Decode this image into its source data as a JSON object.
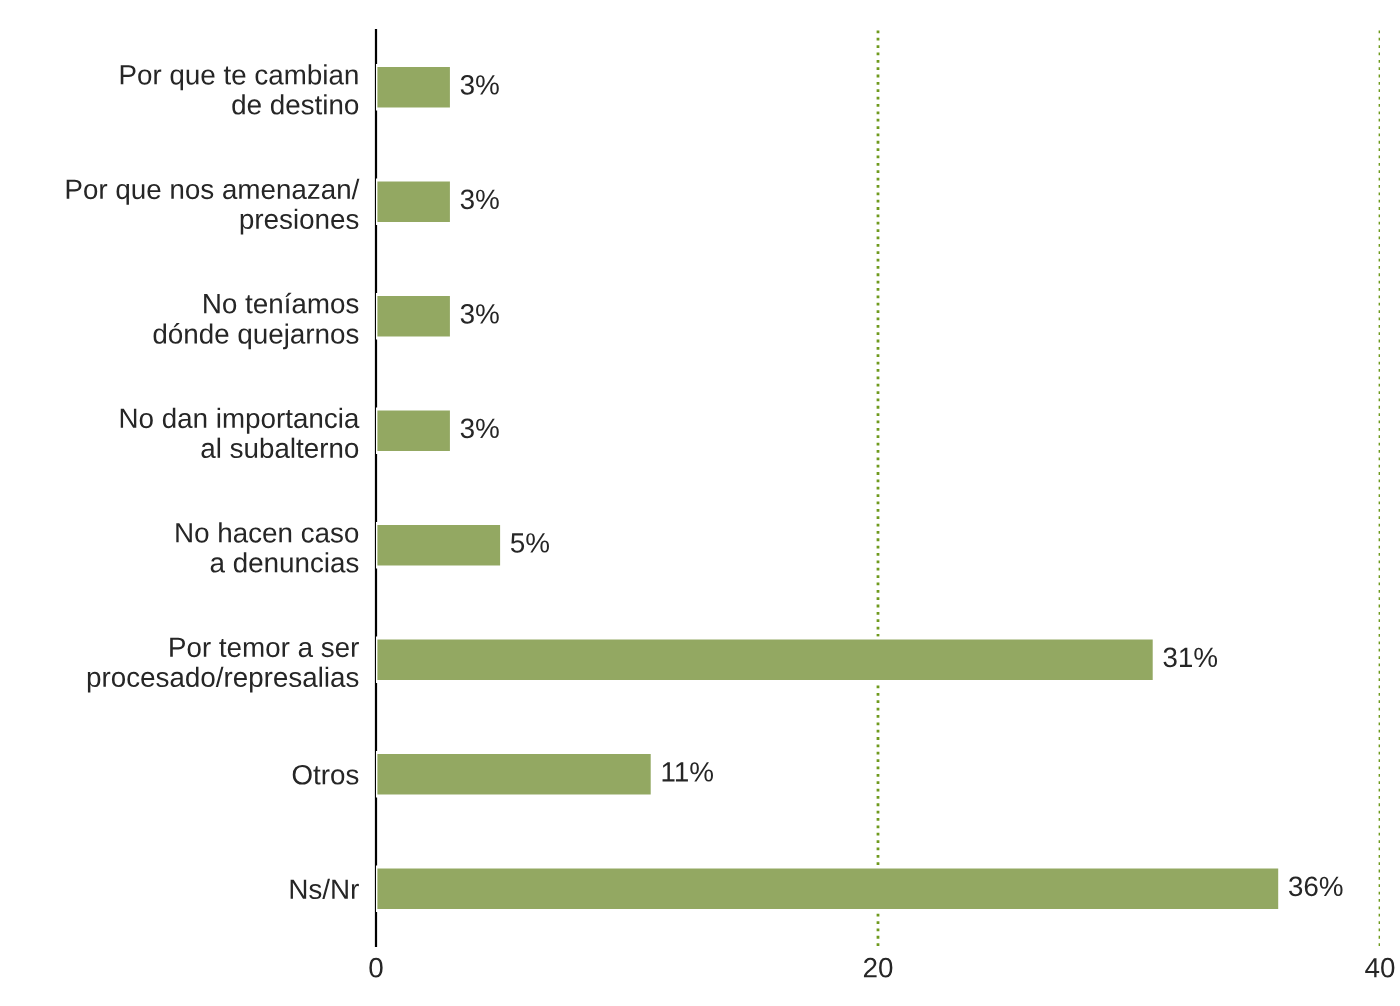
{
  "chart_data": {
    "type": "bar",
    "orientation": "horizontal",
    "categories": [
      "Por que te cambian\nde destino",
      "Por que nos amenazan/\npresiones",
      "No teníamos\ndónde quejarnos",
      "No dan importancia\nal subalterno",
      "No hacen caso\na denuncias",
      "Por temor a ser\nprocesado/represalias",
      "Otros",
      "Ns/Nr"
    ],
    "values": [
      3,
      3,
      3,
      3,
      5,
      31,
      11,
      36
    ],
    "value_labels": [
      "3%",
      "3%",
      "3%",
      "3%",
      "5%",
      "31%",
      "11%",
      "36%"
    ],
    "color": "#93a862",
    "xlim": [
      0,
      40
    ],
    "xticks": [
      0,
      20,
      40
    ],
    "ref_lines": [
      {
        "axis": "x",
        "value": 20,
        "color": "#6f9a1e",
        "line_style": "dotted"
      },
      {
        "axis": "x",
        "value": 40,
        "color": "#6f9a1e",
        "line_style": "dotted"
      }
    ]
  }
}
